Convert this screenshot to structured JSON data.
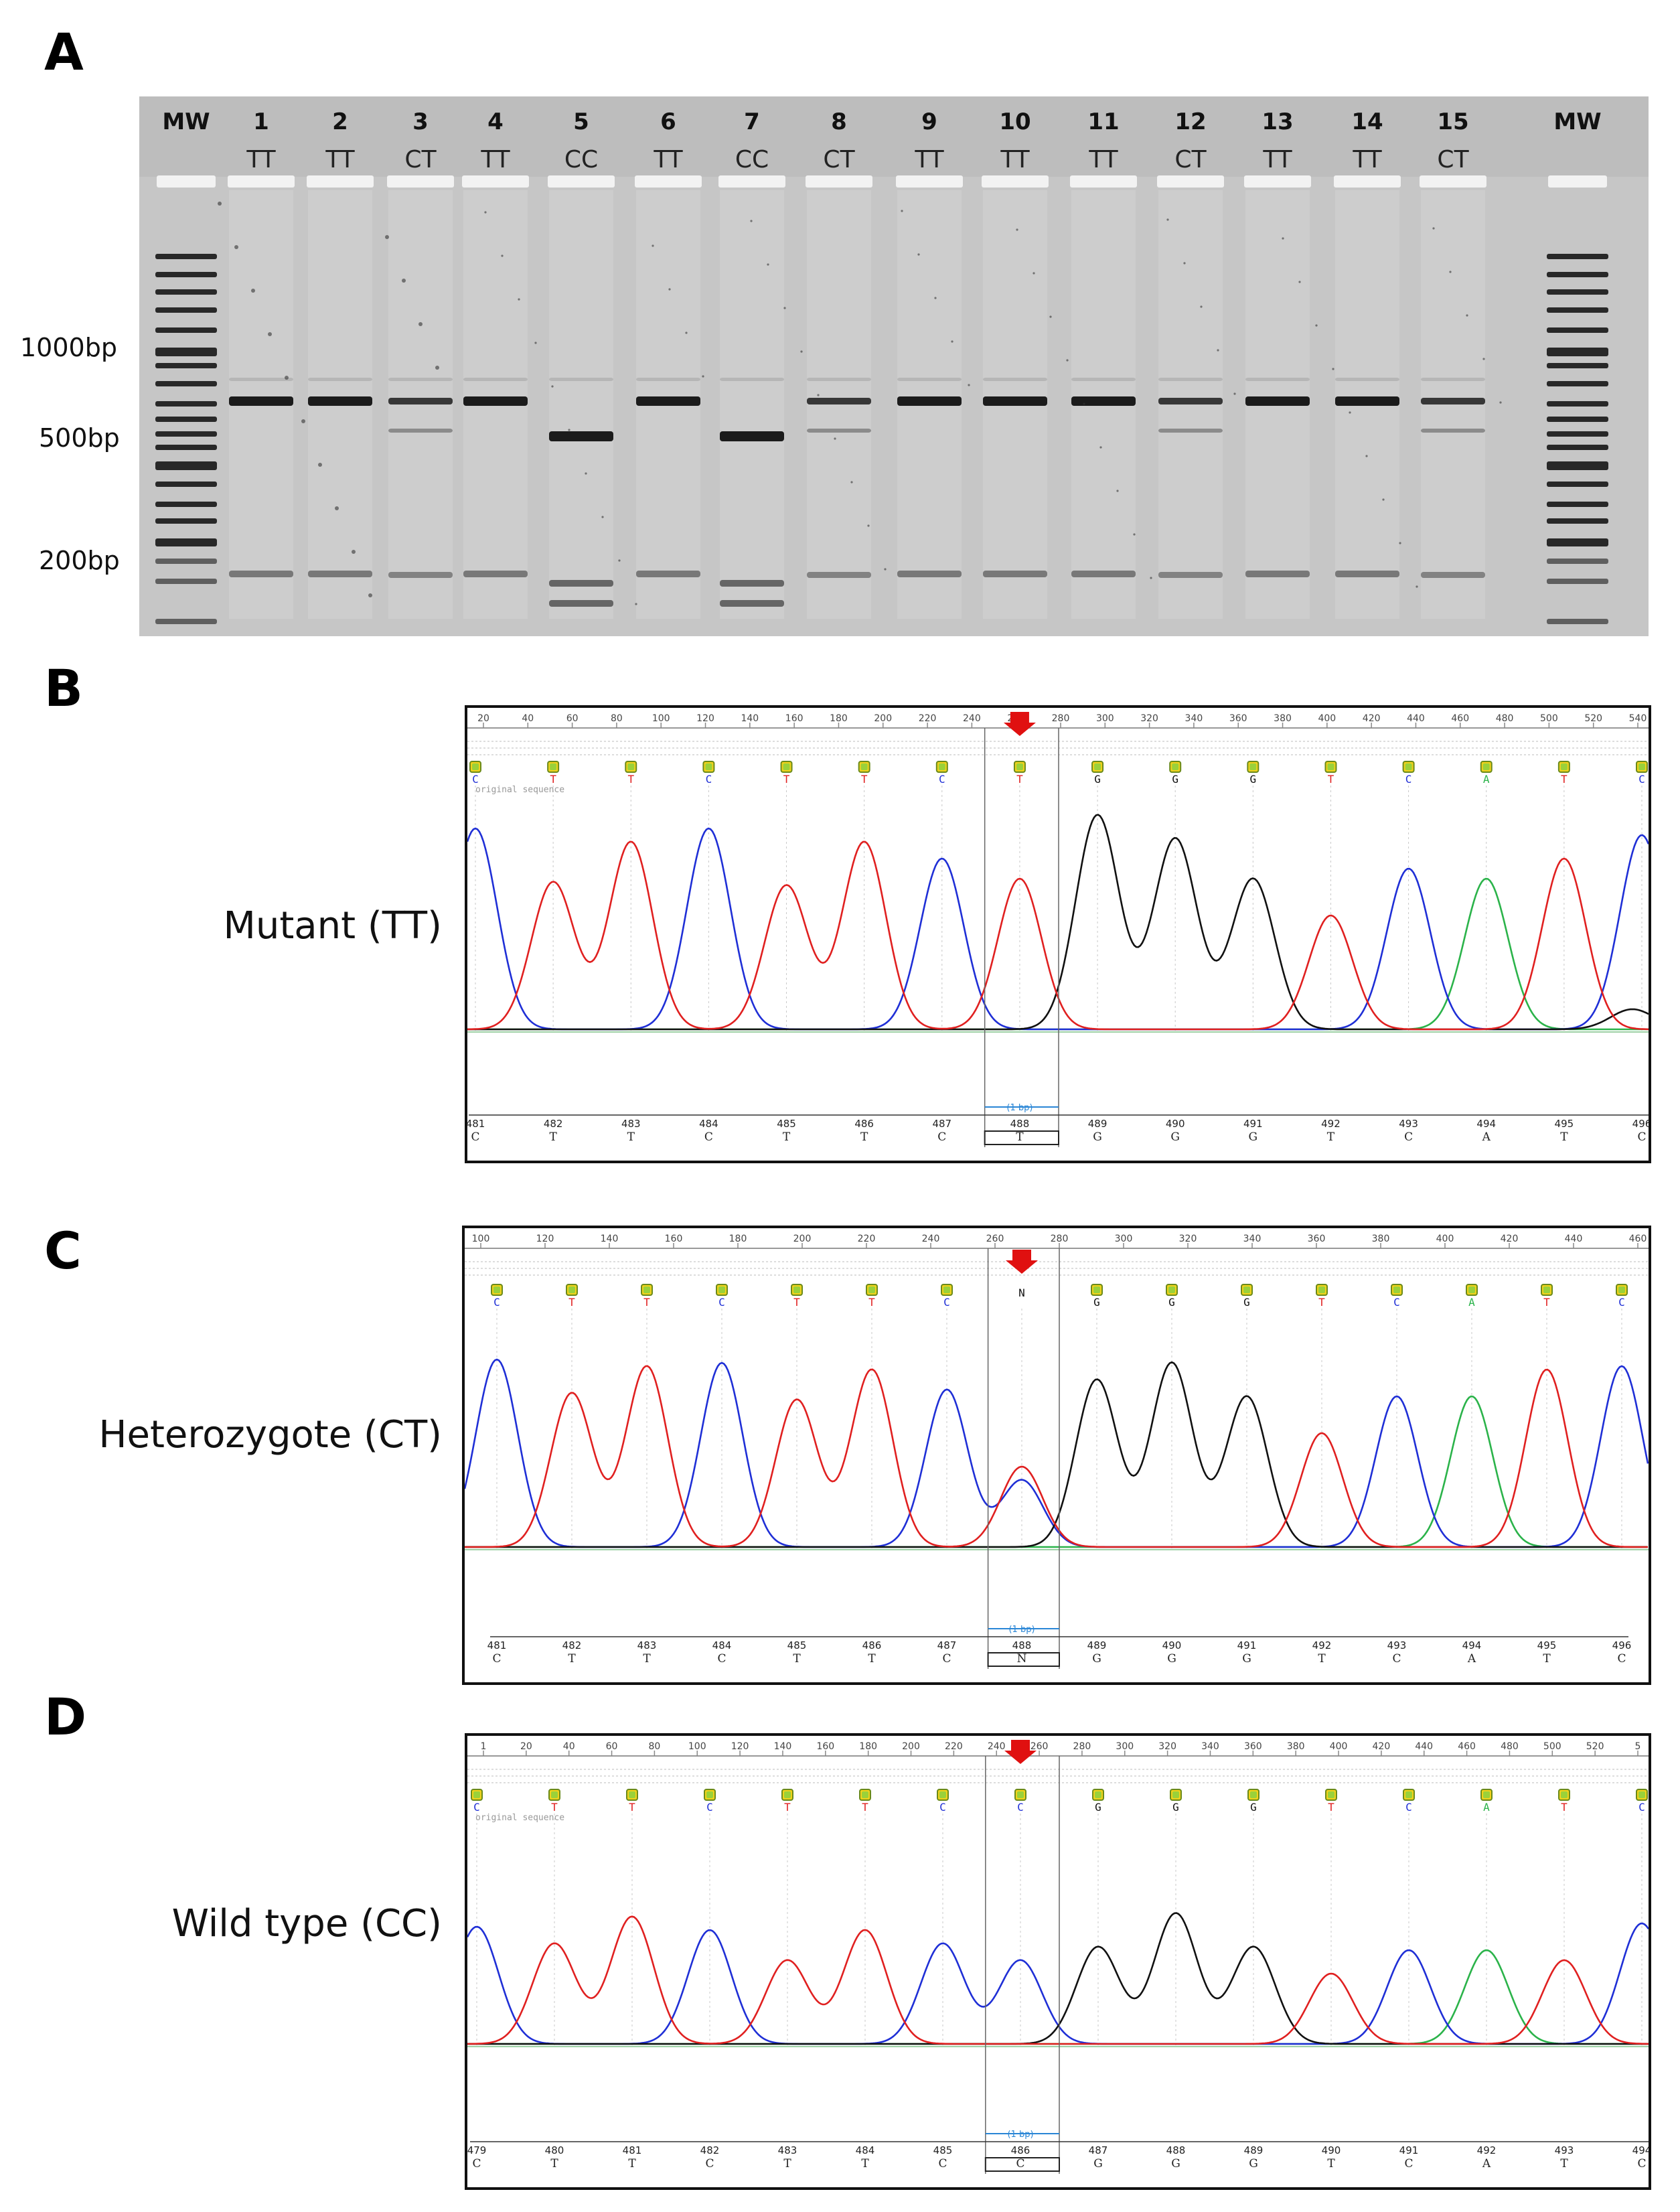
{
  "panels": {
    "A": {
      "letter": "A",
      "lane_labels": [
        "MW",
        "1",
        "2",
        "3",
        "4",
        "5",
        "6",
        "7",
        "8",
        "9",
        "10",
        "11",
        "12",
        "13",
        "14",
        "15",
        "MW"
      ],
      "genotypes": [
        "",
        "TT",
        "TT",
        "CT",
        "TT",
        "CC",
        "TT",
        "CC",
        "CT",
        "TT",
        "TT",
        "TT",
        "CT",
        "TT",
        "TT",
        "CT",
        ""
      ],
      "size_markers": [
        "1000bp",
        "500bp",
        "200bp"
      ]
    },
    "B": {
      "letter": "B",
      "label": "Mutant (TT)",
      "ruler": [
        "20",
        "40",
        "60",
        "80",
        "100",
        "120",
        "140",
        "160",
        "180",
        "200",
        "220",
        "240",
        "260",
        "280",
        "300",
        "320",
        "340",
        "360",
        "380",
        "400",
        "420",
        "440",
        "460",
        "480",
        "500",
        "520",
        "540"
      ],
      "bases": [
        "C",
        "T",
        "T",
        "C",
        "T",
        "T",
        "C",
        "T",
        "G",
        "G",
        "G",
        "T",
        "C",
        "A",
        "T",
        "C"
      ],
      "positions": [
        "481",
        "482",
        "483",
        "484",
        "485",
        "486",
        "487",
        "488",
        "489",
        "490",
        "491",
        "492",
        "493",
        "494",
        "495",
        "496"
      ],
      "seq_note": "original sequence",
      "bp_marker": "(1 bp)"
    },
    "C": {
      "letter": "C",
      "label": "Heterozygote (CT)",
      "ruler": [
        "100",
        "120",
        "140",
        "160",
        "180",
        "200",
        "220",
        "240",
        "260",
        "280",
        "300",
        "320",
        "340",
        "360",
        "380",
        "400",
        "420",
        "440",
        "460"
      ],
      "bases": [
        "C",
        "T",
        "T",
        "C",
        "T",
        "T",
        "C",
        "N",
        "G",
        "G",
        "G",
        "T",
        "C",
        "A",
        "T",
        "C"
      ],
      "positions": [
        "481",
        "482",
        "483",
        "484",
        "485",
        "486",
        "487",
        "488",
        "489",
        "490",
        "491",
        "492",
        "493",
        "494",
        "495",
        "496"
      ],
      "bp_marker": "(1 bp)"
    },
    "D": {
      "letter": "D",
      "label": "Wild type (CC)",
      "ruler": [
        "1",
        "20",
        "40",
        "60",
        "80",
        "100",
        "120",
        "140",
        "160",
        "180",
        "200",
        "220",
        "240",
        "260",
        "280",
        "300",
        "320",
        "340",
        "360",
        "380",
        "400",
        "420",
        "440",
        "460",
        "480",
        "500",
        "520",
        "5"
      ],
      "bases": [
        "C",
        "T",
        "T",
        "C",
        "T",
        "T",
        "C",
        "C",
        "G",
        "G",
        "G",
        "T",
        "C",
        "A",
        "T",
        "C"
      ],
      "positions": [
        "479",
        "480",
        "481",
        "482",
        "483",
        "484",
        "485",
        "486",
        "487",
        "488",
        "489",
        "490",
        "491",
        "492",
        "493",
        "494"
      ],
      "seq_note": "original sequence",
      "bp_marker": "(1 bp)"
    }
  },
  "colors": {
    "A": "#2bb34a",
    "C": "#1f2fd6",
    "G": "#111111",
    "T": "#e02020",
    "N": "#111111",
    "arrow": "#e01010"
  }
}
